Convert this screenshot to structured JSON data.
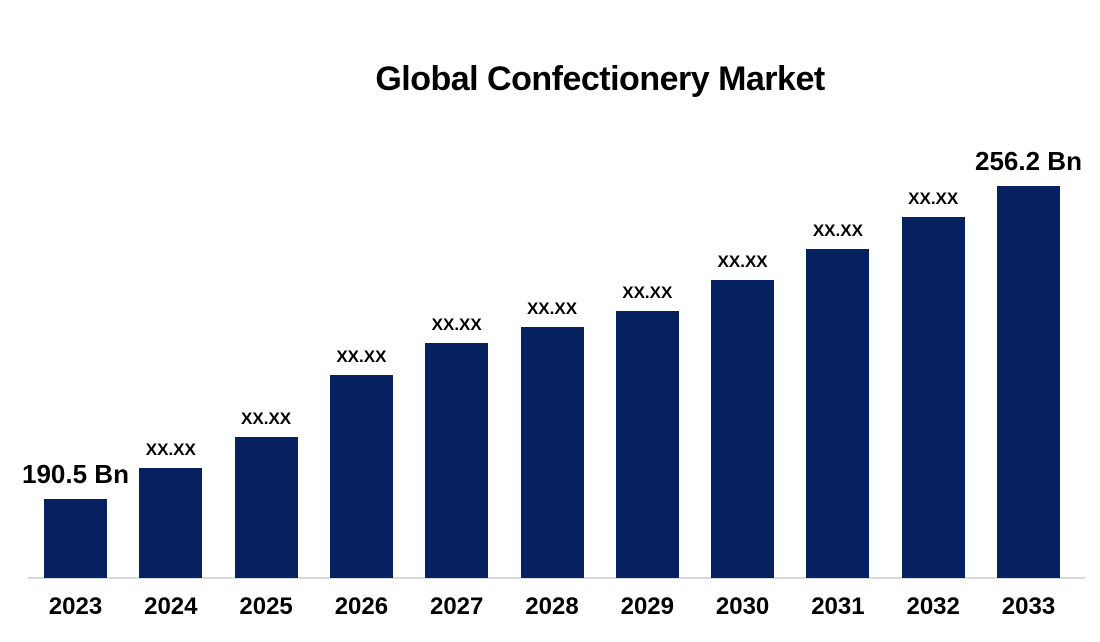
{
  "chart_data": {
    "type": "bar",
    "title": "Global Confectionery Market",
    "categories": [
      "2023",
      "2024",
      "2025",
      "2026",
      "2027",
      "2028",
      "2029",
      "2030",
      "2031",
      "2032",
      "2033"
    ],
    "bar_labels": [
      "190.5 Bn",
      "XX.XX",
      "XX.XX",
      "XX.XX",
      "XX.XX",
      "XX.XX",
      "XX.XX",
      "XX.XX",
      "XX.XX",
      "XX.XX",
      "256.2 Bn"
    ],
    "values": [
      190.5,
      197.0,
      203.5,
      216.5,
      223.2,
      226.7,
      230.0,
      236.5,
      243.0,
      249.7,
      256.2
    ],
    "values_note": "Only 2023 (190.5 Bn) and 2033 (256.2 Bn) are labeled on the chart; intermediate values are masked as XX.XX and estimated from bar heights",
    "unit": "Bn",
    "xlabel": "",
    "ylabel": "",
    "axis_baseline_value": 174,
    "ylim": [
      174,
      260
    ],
    "grid": false,
    "legend": false,
    "y_axis_visible": false,
    "bar_color": "#062160",
    "axis_line_color": "#D8D8D8",
    "text_color": "#000000",
    "background_color": "#FFFFFF"
  }
}
